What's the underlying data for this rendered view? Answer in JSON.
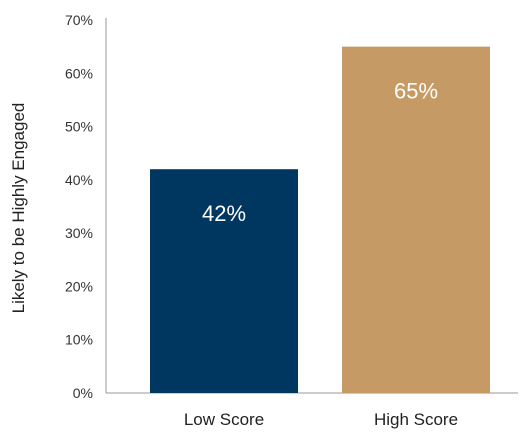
{
  "chart_data": {
    "type": "bar",
    "categories": [
      "Low Score",
      "High Score"
    ],
    "values": [
      42,
      65
    ],
    "data_labels": [
      "42%",
      "65%"
    ],
    "colors": [
      "#003761",
      "#C59A65"
    ],
    "ylabel": "Likely to be Highly Engaged",
    "ylim": [
      0,
      70
    ],
    "yticks": [
      "0%",
      "10%",
      "20%",
      "30%",
      "40%",
      "50%",
      "60%",
      "70%"
    ],
    "grid": false
  }
}
